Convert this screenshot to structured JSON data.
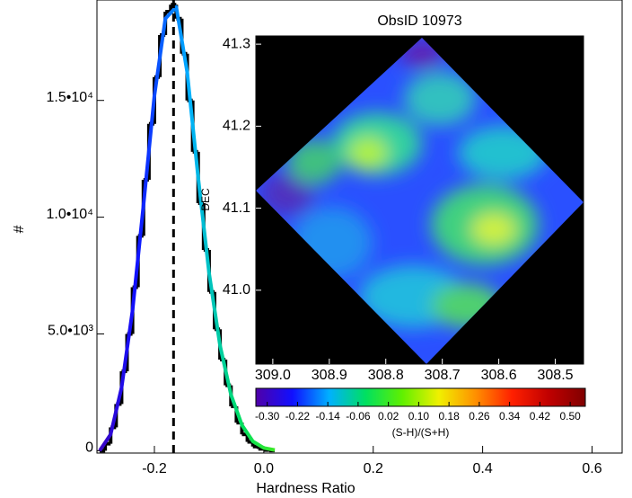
{
  "chart_data": [
    {
      "type": "histogram",
      "xlabel": "Hardness Ratio",
      "ylabel": "#",
      "bins": [
        -0.3,
        -0.29,
        -0.28,
        -0.27,
        -0.26,
        -0.25,
        -0.24,
        -0.23,
        -0.22,
        -0.21,
        -0.2,
        -0.19,
        -0.18,
        -0.17,
        -0.16,
        -0.15,
        -0.14,
        -0.13,
        -0.12,
        -0.11,
        -0.1,
        -0.09,
        -0.08,
        -0.07,
        -0.06,
        -0.05,
        -0.04,
        -0.03,
        -0.02,
        -0.01,
        0.0,
        0.01,
        0.02
      ],
      "values": [
        0,
        300,
        1000,
        2000,
        3400,
        5000,
        7000,
        9200,
        11600,
        14000,
        16000,
        17800,
        18800,
        19100,
        18500,
        17000,
        15000,
        12800,
        10600,
        8600,
        6800,
        5200,
        3900,
        2800,
        1900,
        1200,
        700,
        380,
        180,
        80,
        30,
        10
      ],
      "color": "#000000",
      "fit": {
        "x": [
          -0.3,
          -0.28,
          -0.26,
          -0.24,
          -0.22,
          -0.2,
          -0.18,
          -0.16,
          -0.14,
          -0.12,
          -0.1,
          -0.08,
          -0.06,
          -0.04,
          -0.02,
          0.0,
          0.02
        ],
        "values": [
          0,
          700,
          2700,
          6000,
          10500,
          15200,
          18500,
          19000,
          16200,
          11700,
          7600,
          4500,
          2400,
          1100,
          400,
          120,
          30
        ]
      },
      "mean_line": -0.165,
      "xlim": [
        -0.305,
        0.655
      ],
      "ylim": [
        -100,
        19300
      ],
      "xticks": [
        -0.2,
        {
          "value": 0,
          "label": "0.0"
        },
        0.2,
        0.4,
        0.6
      ],
      "yticks": [
        0,
        {
          "value": 5000,
          "label": "5.0•10³"
        },
        {
          "value": 10000,
          "label": "1.0•10⁴"
        },
        {
          "value": 15000,
          "label": "1.5•10⁴"
        }
      ]
    },
    {
      "type": "image",
      "title": "ObsID 10973",
      "ylabel": "DEC",
      "xlim": [
        309.03,
        308.45
      ],
      "ylim": [
        40.91,
        41.31
      ],
      "xticks": [
        {
          "value": 309.0,
          "label": "309.0"
        },
        308.9,
        308.8,
        308.7,
        308.6,
        308.5
      ],
      "yticks": [
        {
          "value": 41.0,
          "label": "41.0"
        },
        41.1,
        41.2,
        41.3
      ],
      "colorbar": {
        "label": "(S-H)/(S+H)",
        "lim": [
          -0.33,
          0.54
        ],
        "ticks": [
          {
            "value": -0.3,
            "label": "-0.30"
          },
          -0.22,
          -0.14,
          -0.06,
          0.02,
          {
            "value": 0.1,
            "label": "0.10"
          },
          0.18,
          0.26,
          0.34,
          0.42,
          {
            "value": 0.5,
            "label": "0.50"
          }
        ],
        "colors": [
          "#5000a8",
          "#1010ff",
          "#00b0ff",
          "#00e060",
          "#60f000",
          "#f0f000",
          "#ff9000",
          "#ff2000",
          "#c00000",
          "#800000"
        ]
      }
    }
  ]
}
